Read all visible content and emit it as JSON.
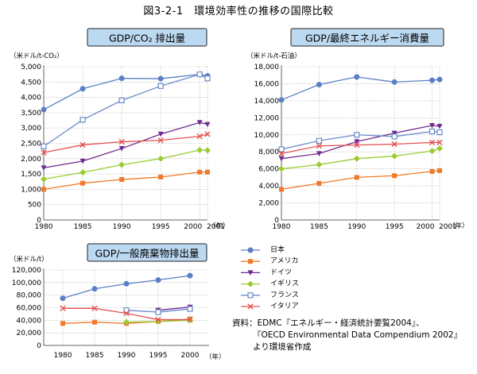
{
  "page_title": "図3-2-1　環境効率性の推移の国際比較",
  "source_lines": [
    "資料：EDMC『エネルギー・経済統計要覧2004』、",
    "『OECD Environmental Data Compendium 2002』",
    "より環境省作成"
  ],
  "legend": [
    {
      "name": "日本",
      "color": "#5a7fc4",
      "marker": "circle"
    },
    {
      "name": "アメリカ",
      "color": "#f07a2a",
      "marker": "square"
    },
    {
      "name": "ドイツ",
      "color": "#6f2a8e",
      "marker": "triangle-down"
    },
    {
      "name": "イギリス",
      "color": "#9acd32",
      "marker": "diamond"
    },
    {
      "name": "フランス",
      "color": "#6a8bc8",
      "marker": "square-open"
    },
    {
      "name": "イタリア",
      "color": "#e55353",
      "marker": "x"
    }
  ],
  "chart_data": [
    {
      "type": "line",
      "title": "GDP/CO₂ 排出量",
      "ylabel": "（米ドル/t-CO₂）",
      "xlabel": "（年）",
      "x": [
        1980,
        1985,
        1990,
        1995,
        2000,
        2001
      ],
      "x_ticks": [
        "1980",
        "1985",
        "1990",
        "1995",
        "2000",
        "2001"
      ],
      "ylim": [
        0,
        5000
      ],
      "y_ticks": [
        "0",
        "500",
        "1,000",
        "1,500",
        "2,000",
        "2,500",
        "3,000",
        "3,500",
        "4,000",
        "4,500",
        "5,000"
      ],
      "grid": true,
      "series": [
        {
          "name": "日本",
          "values": [
            3600,
            4280,
            4620,
            4610,
            4750,
            4700
          ]
        },
        {
          "name": "アメリカ",
          "values": [
            1000,
            1200,
            1320,
            1400,
            1560,
            1560
          ]
        },
        {
          "name": "ドイツ",
          "values": [
            1700,
            1920,
            2330,
            2800,
            3180,
            3120
          ]
        },
        {
          "name": "イギリス",
          "values": [
            1330,
            1550,
            1800,
            2000,
            2280,
            2270
          ]
        },
        {
          "name": "フランス",
          "values": [
            2400,
            3270,
            3900,
            4370,
            4750,
            4620
          ]
        },
        {
          "name": "イタリア",
          "values": [
            2200,
            2450,
            2550,
            2600,
            2730,
            2800
          ]
        }
      ]
    },
    {
      "type": "line",
      "title": "GDP/最終エネルギー消費量",
      "ylabel": "（米ドル/t-石油）",
      "xlabel": "（年）",
      "x": [
        1980,
        1985,
        1990,
        1995,
        2000,
        2001
      ],
      "x_ticks": [
        "1980",
        "1985",
        "1990",
        "1995",
        "2000",
        "2001"
      ],
      "ylim": [
        0,
        18000
      ],
      "y_ticks": [
        "0",
        "2,000",
        "4,000",
        "6,000",
        "8,000",
        "10,000",
        "12,000",
        "14,000",
        "16,000",
        "18,000"
      ],
      "grid": true,
      "series": [
        {
          "name": "日本",
          "values": [
            14100,
            15900,
            16800,
            16200,
            16400,
            16500
          ]
        },
        {
          "name": "アメリカ",
          "values": [
            3600,
            4300,
            5000,
            5200,
            5700,
            5800
          ]
        },
        {
          "name": "ドイツ",
          "values": [
            7200,
            7800,
            9200,
            10200,
            11100,
            11000
          ]
        },
        {
          "name": "イギリス",
          "values": [
            6000,
            6500,
            7200,
            7500,
            8100,
            8400
          ]
        },
        {
          "name": "フランス",
          "values": [
            8300,
            9300,
            10000,
            9800,
            10400,
            10300
          ]
        },
        {
          "name": "イタリア",
          "values": [
            7800,
            8700,
            8800,
            8900,
            9100,
            9100
          ]
        }
      ]
    },
    {
      "type": "line",
      "title": "GDP/一般廃棄物排出量",
      "ylabel": "（米ドル/t）",
      "xlabel": "（年）",
      "x": [
        1980,
        1985,
        1990,
        1995,
        2000
      ],
      "x_ticks": [
        "1980",
        "1985",
        "1990",
        "1995",
        "2000"
      ],
      "ylim": [
        0,
        120000
      ],
      "y_ticks": [
        "0",
        "20,000",
        "40,000",
        "60,000",
        "80,000",
        "100,000",
        "120,000"
      ],
      "grid": true,
      "series": [
        {
          "name": "日本",
          "values": [
            75000,
            90000,
            98000,
            104000,
            111000
          ]
        },
        {
          "name": "アメリカ",
          "values": [
            35000,
            37000,
            35000,
            38000,
            42000
          ]
        },
        {
          "name": "ドイツ",
          "values": [
            null,
            null,
            null,
            56000,
            61000
          ]
        },
        {
          "name": "イギリス",
          "values": [
            null,
            null,
            37000,
            38000,
            40000
          ]
        },
        {
          "name": "フランス",
          "values": [
            null,
            null,
            56000,
            53000,
            58000
          ]
        },
        {
          "name": "イタリア",
          "values": [
            59000,
            59000,
            51000,
            41000,
            41000
          ]
        }
      ]
    }
  ]
}
